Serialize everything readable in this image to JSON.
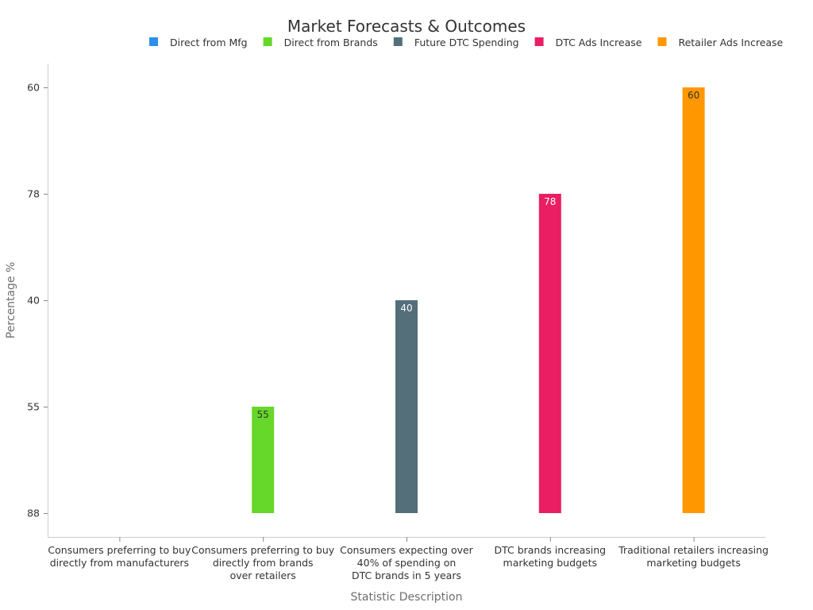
{
  "chart_data": {
    "type": "bar",
    "title": "Market Forecasts & Outcomes",
    "xlabel": "Statistic Description",
    "ylabel": "Percentage %",
    "y_axis_type": "category",
    "y_categories": [
      "88",
      "55",
      "40",
      "78",
      "60"
    ],
    "categories": [
      "Consumers preferring to buy directly from manufacturers",
      "Consumers preferring to buy directly from brands over retailers",
      "Consumers expecting over 40% of spending on DTC brands in 5 years",
      "DTC brands increasing marketing budgets",
      "Traditional retailers increasing marketing budgets"
    ],
    "category_label_lines": [
      [
        "Consumers preferring to buy",
        "directly from manufacturers"
      ],
      [
        "Consumers preferring to buy",
        "directly from brands",
        "over retailers"
      ],
      [
        "Consumers expecting over",
        "40% of spending on",
        "DTC brands in 5 years"
      ],
      [
        "DTC brands increasing",
        "marketing budgets"
      ],
      [
        "Traditional retailers increasing",
        "marketing budgets"
      ]
    ],
    "series": [
      {
        "name": "Direct from Mfg",
        "color": "#2e8fea",
        "values": [
          "88",
          null,
          null,
          null,
          null
        ],
        "label_color": "#333333"
      },
      {
        "name": "Direct from Brands",
        "color": "#66d829",
        "values": [
          null,
          "55",
          null,
          null,
          null
        ],
        "label_color": "#333333"
      },
      {
        "name": "Future DTC Spending",
        "color": "#546e7a",
        "values": [
          null,
          null,
          "40",
          null,
          null
        ],
        "label_color": "#ffffff"
      },
      {
        "name": "DTC Ads Increase",
        "color": "#e91e63",
        "values": [
          null,
          null,
          null,
          "78",
          null
        ],
        "label_color": "#ffffff"
      },
      {
        "name": "Retailer Ads Increase",
        "color": "#ff9800",
        "values": [
          null,
          null,
          null,
          null,
          "60"
        ],
        "label_color": "#333333"
      }
    ],
    "legend_position": "top",
    "grid": false
  }
}
